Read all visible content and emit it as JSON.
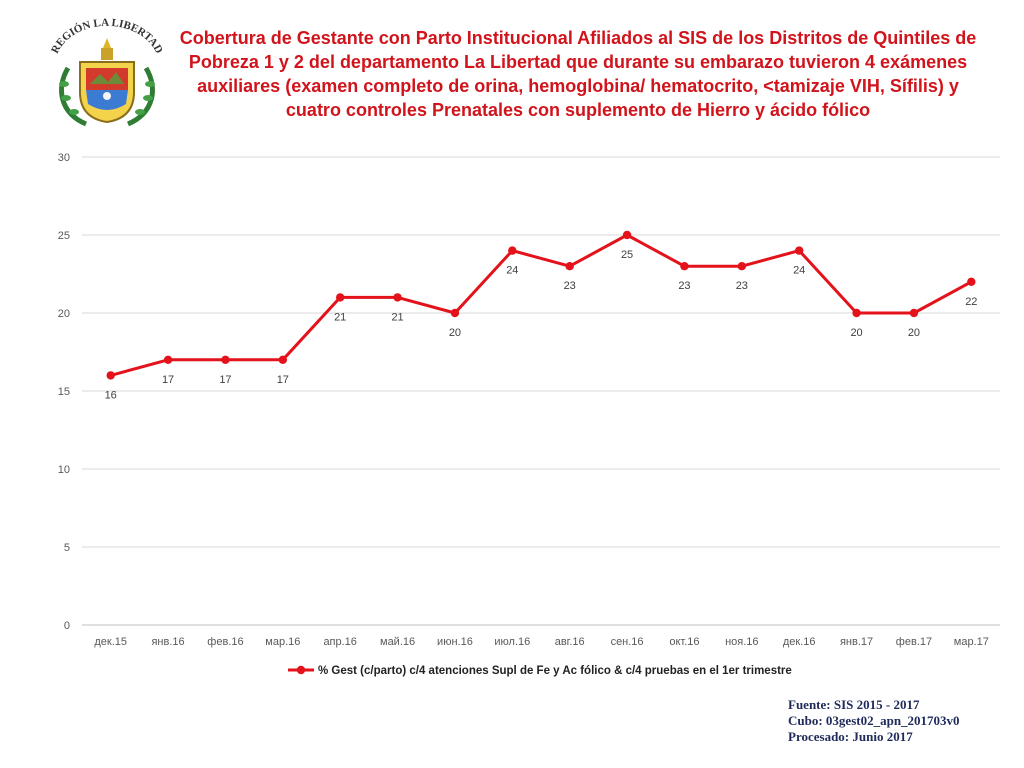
{
  "title": "Cobertura de Gestante con  Parto Institucional  Afiliados al SIS de los Distritos de Quintiles de Pobreza 1 y 2  del departamento La Libertad que durante su embarazo tuvieron 4 exámenes auxiliares (examen completo de orina, hemoglobina/ hematocrito, <tamizaje VIH, Sífilis) y cuatro controles Prenatales con suplemento de Hierro y ácido fólico",
  "logo": {
    "arc_text": "REGIÓN LA LIBERTAD",
    "icon": "regional-coat-of-arms"
  },
  "colors": {
    "title": "#d1141c",
    "series": "#e3121b",
    "grid": "#d9d9d9",
    "axis_text": "#595959",
    "footer": "#1f2a5a"
  },
  "chart_data": {
    "type": "line",
    "title": "",
    "xlabel": "",
    "ylabel": "",
    "categories": [
      "дек.15",
      "янв.16",
      "фев.16",
      "мар.16",
      "апр.16",
      "май.16",
      "июн.16",
      "июл.16",
      "авг.16",
      "сен.16",
      "окт.16",
      "ноя.16",
      "дек.16",
      "янв.17",
      "фев.17",
      "мар.17"
    ],
    "series": [
      {
        "name": "% Gest (c/parto) c/4 atenciones Supl de Fe y Ac fólico & c/4 pruebas en el 1er trimestre",
        "values": [
          16,
          17,
          17,
          17,
          21,
          21,
          20,
          24,
          23,
          25,
          23,
          23,
          24,
          20,
          20,
          22
        ],
        "color": "#e3121b"
      }
    ],
    "ylim": [
      0,
      30
    ],
    "yticks": [
      0,
      5,
      10,
      15,
      20,
      25,
      30
    ],
    "grid": true,
    "legend": "bottom-center",
    "data_labels": true
  },
  "footer": {
    "source": "Fuente: SIS 2015 - 2017",
    "cube": "Cubo: 03gest02_apn_201703v0",
    "processed": "Procesado: Junio 2017"
  }
}
